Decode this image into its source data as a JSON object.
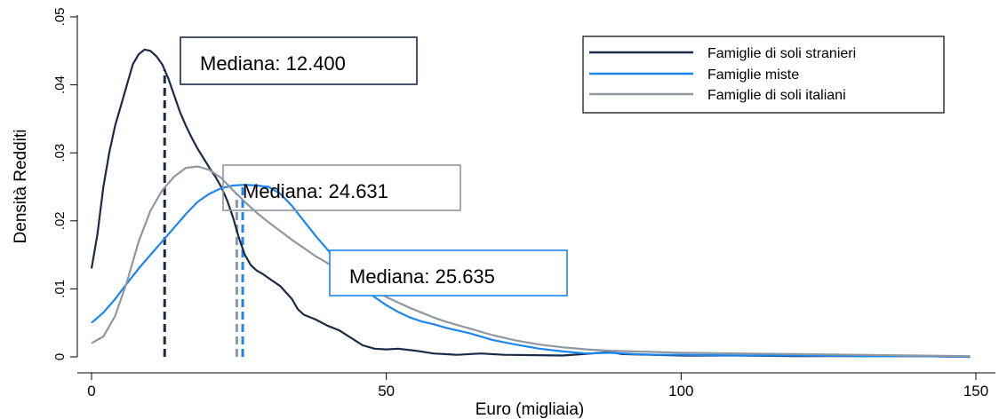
{
  "chart_data": {
    "type": "line",
    "xlabel": "Euro (migliaia)",
    "ylabel": "Densità Redditi",
    "xlim": [
      0,
      150
    ],
    "ylim": [
      0,
      0.05
    ],
    "x_ticks": [
      0,
      50,
      100,
      150
    ],
    "x_tick_labels": [
      "0",
      "50",
      "100",
      "150"
    ],
    "y_ticks": [
      0,
      0.01,
      0.02,
      0.03,
      0.04,
      0.05
    ],
    "y_tick_labels": [
      "0",
      ".01",
      ".02",
      ".03",
      ".04",
      ".05"
    ],
    "grid": false,
    "legend_position": "top-right",
    "series": [
      {
        "name": "Famiglie di soli stranieri",
        "color": "#1a2a47",
        "median": 12.4,
        "points": [
          [
            0,
            0.013
          ],
          [
            1,
            0.018
          ],
          [
            2,
            0.025
          ],
          [
            3,
            0.03
          ],
          [
            4,
            0.034
          ],
          [
            5,
            0.037
          ],
          [
            6,
            0.04
          ],
          [
            7,
            0.043
          ],
          [
            8,
            0.0445
          ],
          [
            9,
            0.0452
          ],
          [
            10,
            0.045
          ],
          [
            11,
            0.0442
          ],
          [
            12,
            0.043
          ],
          [
            13,
            0.041
          ],
          [
            14,
            0.0385
          ],
          [
            15,
            0.036
          ],
          [
            16,
            0.034
          ],
          [
            17,
            0.0322
          ],
          [
            18,
            0.0306
          ],
          [
            19,
            0.0292
          ],
          [
            20,
            0.0278
          ],
          [
            21,
            0.0265
          ],
          [
            22,
            0.025
          ],
          [
            23,
            0.023
          ],
          [
            24,
            0.0205
          ],
          [
            25,
            0.0175
          ],
          [
            26,
            0.015
          ],
          [
            27,
            0.0135
          ],
          [
            28,
            0.0127
          ],
          [
            29,
            0.0122
          ],
          [
            30,
            0.0116
          ],
          [
            32,
            0.0104
          ],
          [
            34,
            0.0085
          ],
          [
            35,
            0.007
          ],
          [
            36,
            0.0062
          ],
          [
            38,
            0.0055
          ],
          [
            40,
            0.0046
          ],
          [
            42,
            0.0039
          ],
          [
            44,
            0.0028
          ],
          [
            46,
            0.0017
          ],
          [
            48,
            0.0012
          ],
          [
            50,
            0.0011
          ],
          [
            52,
            0.0012
          ],
          [
            55,
            0.0009
          ],
          [
            58,
            0.0005
          ],
          [
            62,
            0.0003
          ],
          [
            66,
            0.0005
          ],
          [
            70,
            0.0003
          ],
          [
            80,
            0.0002
          ],
          [
            88,
            0.0007
          ],
          [
            90,
            0.0004
          ],
          [
            100,
            0.0002
          ],
          [
            110,
            0.0002
          ],
          [
            120,
            0.0001
          ],
          [
            130,
            0.0001
          ],
          [
            140,
            0.0001
          ],
          [
            149,
            0.0
          ]
        ]
      },
      {
        "name": "Famiglie miste",
        "color": "#1a86f0",
        "median": 25.635,
        "points": [
          [
            0,
            0.005
          ],
          [
            2,
            0.0065
          ],
          [
            4,
            0.0085
          ],
          [
            6,
            0.0108
          ],
          [
            8,
            0.013
          ],
          [
            10,
            0.015
          ],
          [
            12,
            0.017
          ],
          [
            14,
            0.019
          ],
          [
            16,
            0.021
          ],
          [
            18,
            0.0228
          ],
          [
            20,
            0.024
          ],
          [
            22,
            0.0248
          ],
          [
            24,
            0.0252
          ],
          [
            26,
            0.0253
          ],
          [
            28,
            0.0252
          ],
          [
            30,
            0.025
          ],
          [
            32,
            0.024
          ],
          [
            34,
            0.0222
          ],
          [
            36,
            0.02
          ],
          [
            38,
            0.0178
          ],
          [
            40,
            0.0158
          ],
          [
            42,
            0.0138
          ],
          [
            44,
            0.012
          ],
          [
            46,
            0.0103
          ],
          [
            48,
            0.0088
          ],
          [
            50,
            0.0076
          ],
          [
            52,
            0.0066
          ],
          [
            54,
            0.0058
          ],
          [
            56,
            0.0052
          ],
          [
            58,
            0.0048
          ],
          [
            60,
            0.0043
          ],
          [
            64,
            0.0035
          ],
          [
            68,
            0.0025
          ],
          [
            72,
            0.0018
          ],
          [
            76,
            0.0012
          ],
          [
            80,
            0.0008
          ],
          [
            84,
            0.0005
          ],
          [
            88,
            0.0006
          ],
          [
            92,
            0.0004
          ],
          [
            96,
            0.0003
          ],
          [
            100,
            0.0003
          ],
          [
            110,
            0.0002
          ],
          [
            120,
            0.0002
          ],
          [
            130,
            0.0001
          ],
          [
            140,
            0.0001
          ],
          [
            149,
            0.0
          ]
        ]
      },
      {
        "name": "Famiglie di soli italiani",
        "color": "#8f97a1",
        "median": 24.631,
        "points": [
          [
            0,
            0.002
          ],
          [
            2,
            0.003
          ],
          [
            4,
            0.006
          ],
          [
            6,
            0.011
          ],
          [
            8,
            0.017
          ],
          [
            10,
            0.0215
          ],
          [
            12,
            0.0245
          ],
          [
            14,
            0.0265
          ],
          [
            16,
            0.0278
          ],
          [
            18,
            0.028
          ],
          [
            20,
            0.0275
          ],
          [
            22,
            0.0263
          ],
          [
            24,
            0.0245
          ],
          [
            26,
            0.0228
          ],
          [
            28,
            0.0212
          ],
          [
            30,
            0.0198
          ],
          [
            32,
            0.0185
          ],
          [
            34,
            0.0172
          ],
          [
            36,
            0.016
          ],
          [
            38,
            0.0148
          ],
          [
            40,
            0.0138
          ],
          [
            42,
            0.0128
          ],
          [
            44,
            0.0118
          ],
          [
            46,
            0.0108
          ],
          [
            48,
            0.0098
          ],
          [
            50,
            0.0088
          ],
          [
            52,
            0.008
          ],
          [
            54,
            0.0072
          ],
          [
            56,
            0.0065
          ],
          [
            58,
            0.0058
          ],
          [
            60,
            0.0052
          ],
          [
            64,
            0.0042
          ],
          [
            68,
            0.0032
          ],
          [
            72,
            0.0024
          ],
          [
            76,
            0.0018
          ],
          [
            80,
            0.0014
          ],
          [
            84,
            0.0011
          ],
          [
            88,
            0.0009
          ],
          [
            92,
            0.0008
          ],
          [
            96,
            0.0007
          ],
          [
            100,
            0.0006
          ],
          [
            110,
            0.0005
          ],
          [
            120,
            0.0004
          ],
          [
            130,
            0.0003
          ],
          [
            140,
            0.0002
          ],
          [
            149,
            0.0001
          ]
        ]
      }
    ],
    "annotations": [
      {
        "text": "Mediana: 12.400",
        "series": 0,
        "border_color": "#1a2a47"
      },
      {
        "text": "Mediana: 24.631",
        "series": 2,
        "border_color": "#8f97a1"
      },
      {
        "text": "Mediana: 25.635",
        "series": 1,
        "border_color": "#1a86f0"
      }
    ]
  }
}
